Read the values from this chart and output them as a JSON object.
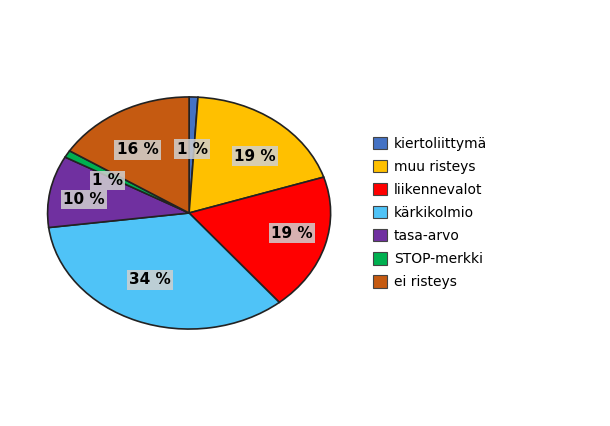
{
  "labels": [
    "kiertoliittymä",
    "muu risteys",
    "liikennevalot",
    "kärkikolmio",
    "tasa-arvo",
    "STOP-merkki",
    "ei risteys"
  ],
  "values": [
    1,
    19,
    19,
    34,
    10,
    1,
    16
  ],
  "colors": [
    "#4472C4",
    "#FFC000",
    "#FF0000",
    "#4FC3F7",
    "#7030A0",
    "#00B050",
    "#C55A11"
  ],
  "pct_labels": [
    "1 %",
    "19 %",
    "19 %",
    "34 %",
    "10 %",
    "1 %",
    "16 %"
  ],
  "figsize": [
    6.1,
    4.26
  ],
  "dpi": 100,
  "background_color": "#ffffff",
  "label_fontsize": 11,
  "legend_fontsize": 10
}
